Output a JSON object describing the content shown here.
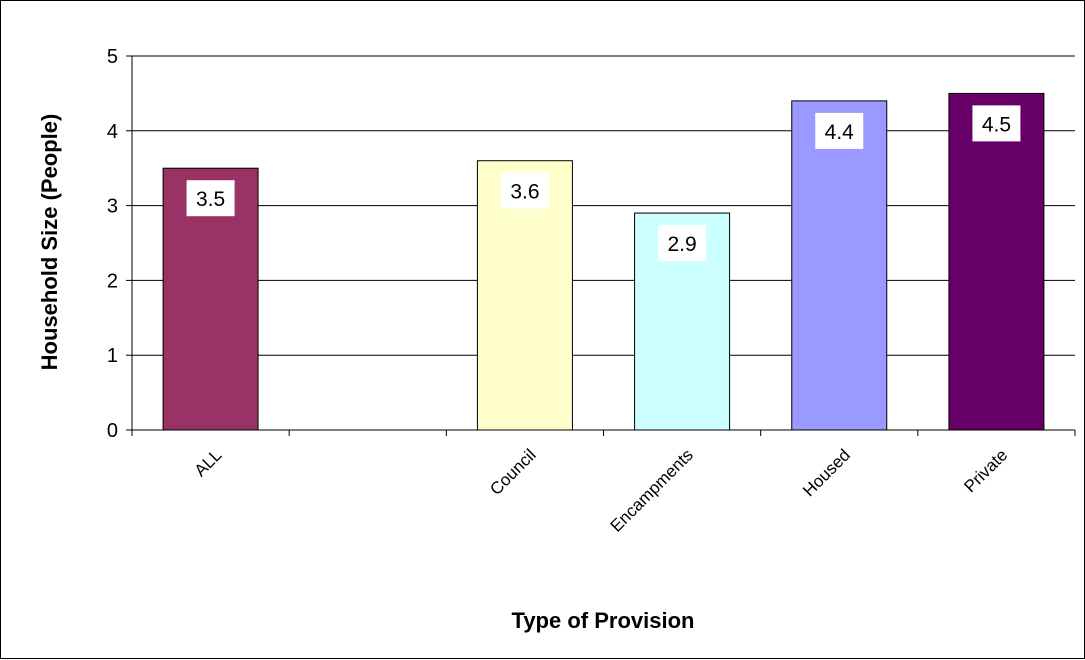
{
  "chart_data": {
    "type": "bar",
    "categories": [
      "ALL",
      "",
      "Council",
      "Encampments",
      "Housed",
      "Private"
    ],
    "values": [
      3.5,
      null,
      3.6,
      2.9,
      4.4,
      4.5
    ],
    "data_labels": [
      "3.5",
      "",
      "3.6",
      "2.9",
      "4.4",
      "4.5"
    ],
    "colors": [
      "#993366",
      null,
      "#FFFFCC",
      "#CCFFFF",
      "#9999FF",
      "#660066"
    ],
    "title": "",
    "xlabel": "Type of Provision",
    "ylabel": "Household Size (People)",
    "ylim": [
      0,
      5
    ],
    "yticks": [
      0,
      1,
      2,
      3,
      4,
      5
    ],
    "grid": true,
    "legend": "none"
  }
}
